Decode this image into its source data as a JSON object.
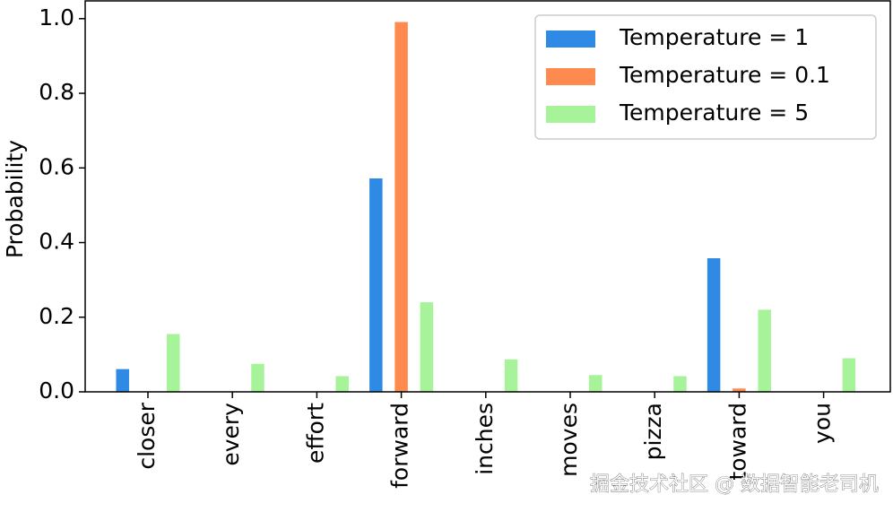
{
  "chart_data": {
    "type": "bar",
    "ylabel": "Probability",
    "categories": [
      "closer",
      "every",
      "effort",
      "forward",
      "inches",
      "moves",
      "pizza",
      "toward",
      "you"
    ],
    "series": [
      {
        "name": "Temperature = 1",
        "color": "#2f8ae5",
        "values": [
          0.061,
          0,
          0,
          0.572,
          0,
          0,
          0,
          0.358,
          0
        ]
      },
      {
        "name": "Temperature = 0.1",
        "color": "#ff8a50",
        "values": [
          0,
          0,
          0,
          0.991,
          0,
          0,
          0,
          0.009,
          0
        ]
      },
      {
        "name": "Temperature = 5",
        "color": "#a6f39a",
        "values": [
          0.155,
          0.075,
          0.042,
          0.24,
          0.087,
          0.045,
          0.042,
          0.22,
          0.09
        ]
      }
    ],
    "ylim": [
      0,
      1.05
    ],
    "yticks": [
      {
        "value": 0,
        "label": "0.0"
      },
      {
        "value": 0.2,
        "label": "0.2"
      },
      {
        "value": 0.4,
        "label": "0.4"
      },
      {
        "value": 0.6,
        "label": "0.6"
      },
      {
        "value": 0.8,
        "label": "0.8"
      },
      {
        "value": 1,
        "label": "1.0"
      }
    ],
    "legend": "upper right",
    "watermark": "掘金技术社区 @ 数据智能老司机"
  }
}
